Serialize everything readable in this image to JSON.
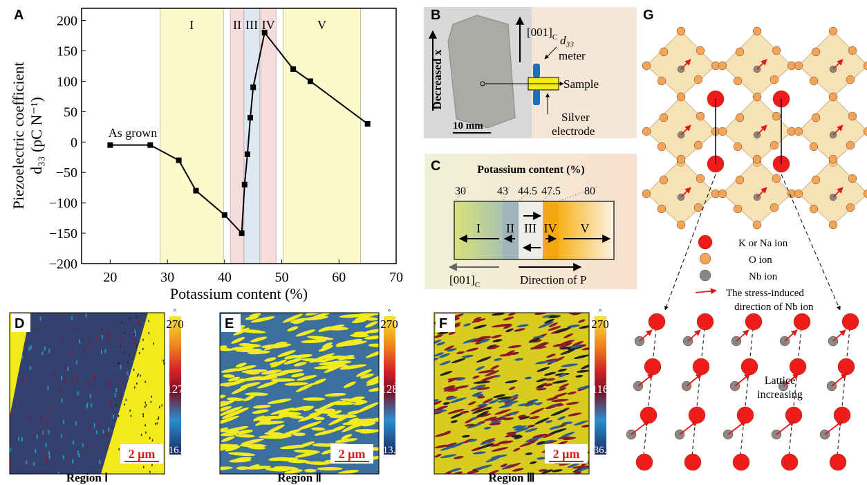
{
  "chart_data": {
    "type": "line",
    "panel_label": "A",
    "xlabel": "Potassium content (%)",
    "ylabel": "Piezoelectric coefficient",
    "ylabel2": "d₃₃ (pC N⁻¹)",
    "annotation": "As grown",
    "x": [
      20,
      27,
      32,
      35,
      40,
      43,
      43.5,
      44,
      44.5,
      45,
      47,
      52,
      55,
      65
    ],
    "values": [
      -5,
      -5,
      -30,
      -80,
      -120,
      -150,
      -70,
      -20,
      40,
      90,
      180,
      120,
      100,
      30
    ],
    "color": "#000000",
    "xlim": [
      15,
      70
    ],
    "xticks": [
      20,
      30,
      40,
      50,
      60,
      70
    ],
    "ylim": [
      -200,
      220
    ],
    "yticks": [
      {
        "value": -200,
        "label": "−200"
      },
      {
        "value": -150,
        "label": "−150"
      },
      {
        "value": -100,
        "label": "−100"
      },
      {
        "value": -50,
        "label": "−50"
      },
      0,
      50,
      100,
      150,
      200
    ],
    "regions": [
      {
        "label": "I",
        "start": 28.7,
        "end": 39.8,
        "color": "#fcf9cc"
      },
      {
        "label": "II",
        "start": 41,
        "end": 43.4,
        "color": "#f6dcdc"
      },
      {
        "label": "III",
        "start": 43.4,
        "end": 46.1,
        "color": "#dde8f3"
      },
      {
        "label": "IV",
        "start": 46.3,
        "end": 49,
        "color": "#f6dcdc"
      },
      {
        "label": "V",
        "start": 50.2,
        "end": 63.8,
        "color": "#fcf9cc"
      }
    ]
  },
  "panels": {
    "B": {
      "label": "B",
      "axis_text": "Decreased x",
      "scale": "10 mm",
      "direction": "[001]",
      "direction_sub": "C",
      "meter": "d₃₃",
      "meter2": "meter",
      "sample": "Sample",
      "electrode1": "Silver",
      "electrode2": "electrode"
    },
    "C": {
      "label": "C",
      "title": "Potassium content (%)",
      "boundaries": [
        "30",
        "43",
        "44.5",
        "47.5",
        "80"
      ],
      "regions": [
        "I",
        "II",
        "III",
        "IV",
        "V"
      ],
      "direction": "[001]",
      "direction_sub": "C",
      "polarization": "Direction of P"
    },
    "maps": [
      {
        "label": "D",
        "unit": "°",
        "scale_max": "270",
        "scale_mid": "127",
        "scale_min": "16.",
        "scale_bar": "2 μm",
        "caption": "Region Ⅰ"
      },
      {
        "label": "E",
        "unit": "°",
        "scale_max": "270",
        "scale_mid": "128",
        "scale_min": "13.",
        "scale_bar": "2 μm",
        "caption": "Region Ⅱ"
      },
      {
        "label": "F",
        "unit": "°",
        "scale_max": "270",
        "scale_mid": "116",
        "scale_min": "36.",
        "scale_bar": "2 μm",
        "caption": "Region Ⅲ"
      }
    ],
    "G": {
      "label": "G",
      "legend": [
        "K or Na ion",
        "O ion",
        "Nb ion"
      ],
      "legend_arrow": [
        "The stress-induced",
        "direction of Nb ion"
      ],
      "note": [
        "Lattice",
        "increasing"
      ]
    }
  }
}
